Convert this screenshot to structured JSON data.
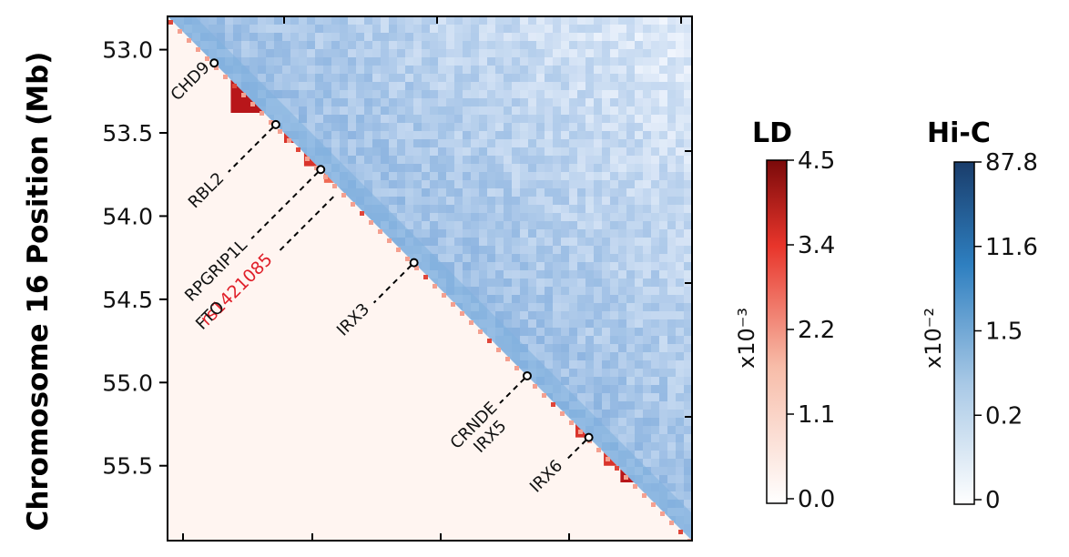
{
  "chart_data": {
    "type": "heatmap",
    "ylabel": "Chromosome 16 Position (Mb)",
    "y_range": [
      52.8,
      55.95
    ],
    "y_ticks": [
      "53.0",
      "53.5",
      "54.0",
      "54.5",
      "55.0",
      "55.5"
    ],
    "upper_triangle": "Hi-C",
    "lower_triangle": "LD",
    "annotations": [
      {
        "label": "CHD9",
        "pos": 53.08,
        "color": "#111111"
      },
      {
        "label": "RBL2",
        "pos": 53.45,
        "color": "#111111"
      },
      {
        "label": "RPGRIP1L",
        "pos": 53.72,
        "color": "#111111"
      },
      {
        "label": "FTO",
        "pos": 53.72,
        "color": "#111111"
      },
      {
        "label": "rs1421085",
        "pos": 53.72,
        "color": "#e0202a"
      },
      {
        "label": "IRX3",
        "pos": 54.28,
        "color": "#111111"
      },
      {
        "label": "CRNDE",
        "pos": 54.96,
        "color": "#111111"
      },
      {
        "label": "IRX5",
        "pos": 54.96,
        "color": "#111111"
      },
      {
        "label": "IRX6",
        "pos": 55.33,
        "color": "#111111"
      }
    ],
    "ld_blocks": [
      {
        "start": 53.18,
        "end": 53.38,
        "max": 4.4
      },
      {
        "start": 53.5,
        "end": 53.56,
        "max": 2.4
      },
      {
        "start": 53.62,
        "end": 53.7,
        "max": 3.0
      },
      {
        "start": 53.74,
        "end": 53.8,
        "max": 2.0
      },
      {
        "start": 55.25,
        "end": 55.33,
        "max": 2.6
      },
      {
        "start": 55.42,
        "end": 55.5,
        "max": 3.2
      },
      {
        "start": 55.52,
        "end": 55.6,
        "max": 3.4
      }
    ],
    "colorbars": [
      {
        "title": "LD",
        "scale_label": "x10⁻³",
        "ticks": [
          "4.5",
          "3.4",
          "2.2",
          "1.1",
          "0.0"
        ],
        "colors": [
          "#7a0a0a",
          "#e8352b",
          "#f7bca8",
          "#ffffff"
        ]
      },
      {
        "title": "Hi-C",
        "scale_label": "x10⁻²",
        "ticks": [
          "87.8",
          "11.6",
          "1.5",
          "0.2",
          "0"
        ],
        "colors": [
          "#1a3d6b",
          "#2e7fc0",
          "#a9c9e6",
          "#ffffff"
        ]
      }
    ]
  }
}
